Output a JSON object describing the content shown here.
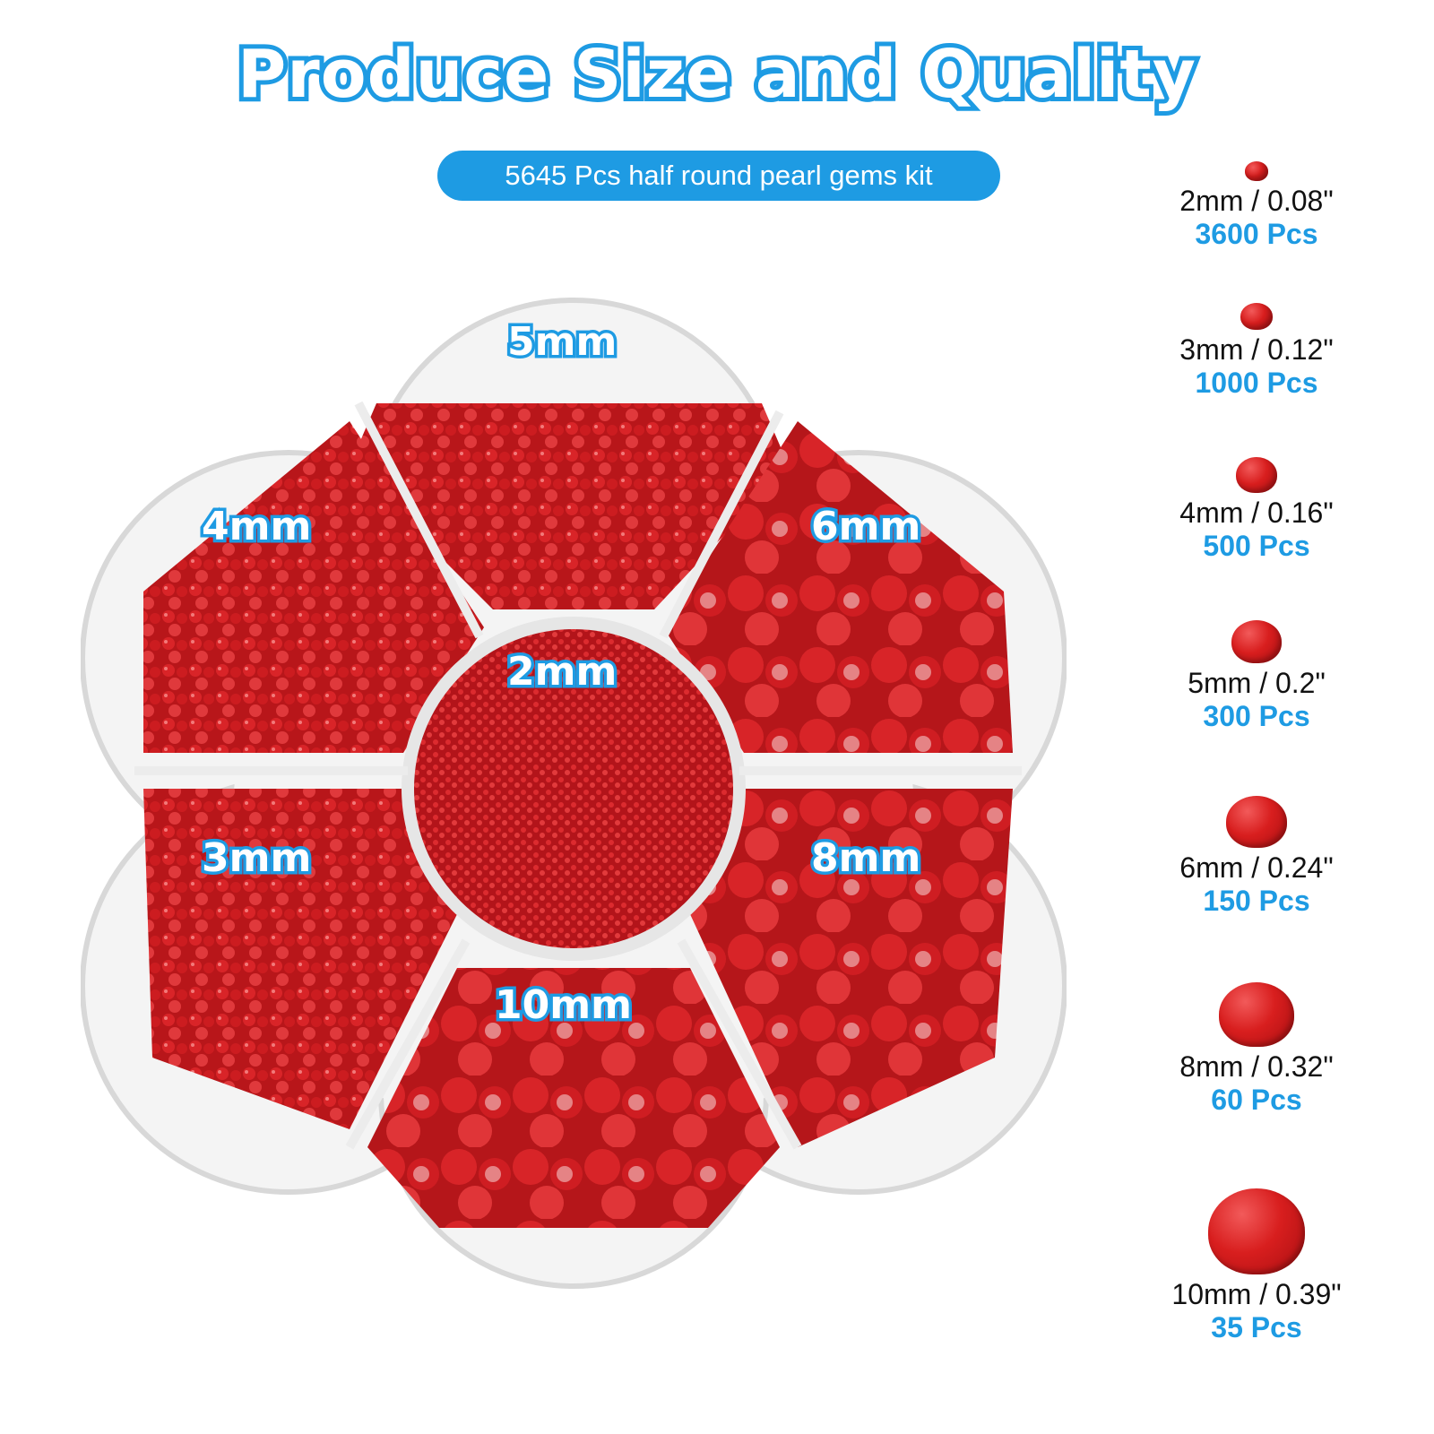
{
  "title": "Produce Size and Quality",
  "subtitle": "5645 Pcs half round pearl gems kit",
  "compartments": {
    "top": "5mm",
    "top_left": "4mm",
    "top_right": "6mm",
    "center": "2mm",
    "bottom_left": "3mm",
    "bottom_right": "8mm",
    "bottom": "10mm"
  },
  "legend": [
    {
      "size": "2mm / 0.08\"",
      "count": "3600 Pcs"
    },
    {
      "size": "3mm / 0.12\"",
      "count": "1000 Pcs"
    },
    {
      "size": "4mm / 0.16\"",
      "count": "500 Pcs"
    },
    {
      "size": "5mm / 0.2\"",
      "count": "300 Pcs"
    },
    {
      "size": "6mm / 0.24\"",
      "count": "150 Pcs"
    },
    {
      "size": "8mm / 0.32\"",
      "count": "60 Pcs"
    },
    {
      "size": "10mm / 0.39\"",
      "count": "35 Pcs"
    }
  ],
  "colors": {
    "accent": "#1e9be3",
    "pearl": "#d81e1e"
  }
}
